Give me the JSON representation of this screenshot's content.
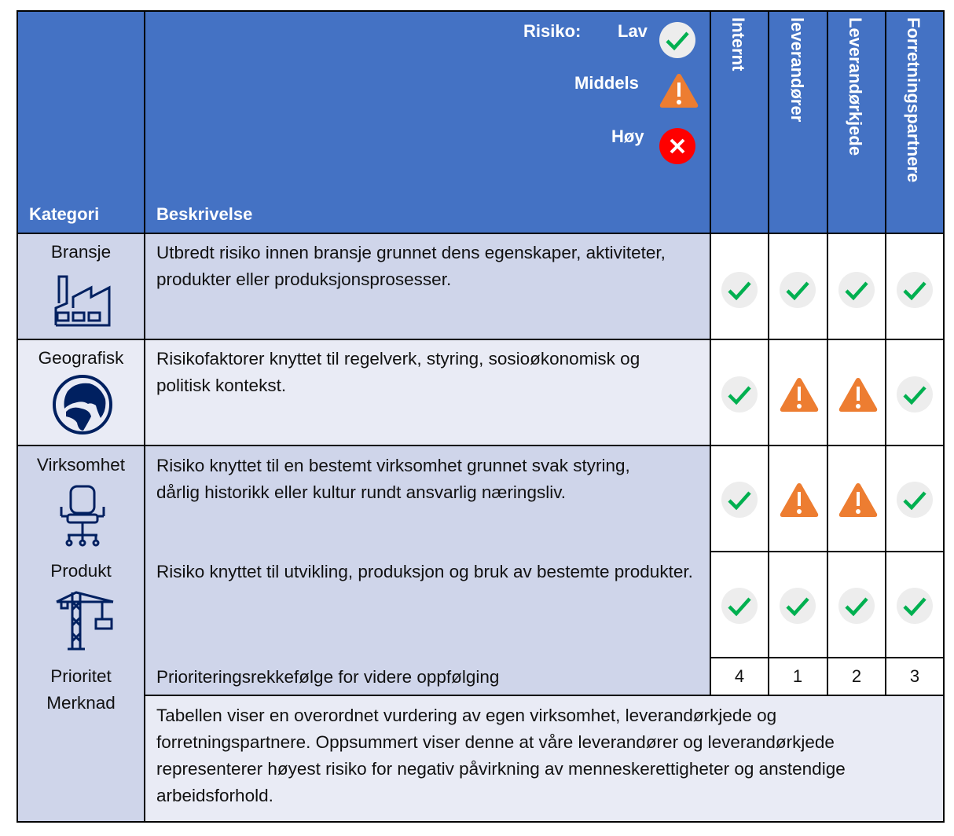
{
  "header": {
    "kategori": "Kategori",
    "beskrivelse": "Beskrivelse",
    "legend": {
      "title": "Risiko:",
      "low": "Lav",
      "medium": "Middels",
      "high": "Høy"
    },
    "columns": [
      "Internt",
      "leverandører",
      "Leverandørkjede",
      "Forretningspartnere"
    ]
  },
  "rows": [
    {
      "category": "Bransje",
      "icon": "factory-icon",
      "description": "Utbredt risiko innen bransje grunnet dens egenskaper, aktiviteter, produkter eller produksjonsprosesser.",
      "risk": [
        "low",
        "low",
        "low",
        "low"
      ]
    },
    {
      "category": "Geografisk",
      "icon": "globe-icon",
      "description": "Risikofaktorer knyttet til regelverk, styring, sosioøkonomisk og politisk kontekst.",
      "risk": [
        "low",
        "medium",
        "medium",
        "low"
      ]
    },
    {
      "category": "Virksomhet",
      "icon": "office-chair-icon",
      "description": "Risiko knyttet til en bestemt virksomhet grunnet svak styring, dårlig historikk eller kultur rundt ansvarlig næringsliv.",
      "risk": [
        "low",
        "medium",
        "medium",
        "low"
      ]
    },
    {
      "category": "Produkt",
      "icon": "crane-icon",
      "description": "Risiko knyttet til utvikling, produksjon og bruk av bestemte produkter.",
      "risk": [
        "low",
        "low",
        "low",
        "low"
      ]
    }
  ],
  "priority": {
    "label": "Prioritet",
    "description": "Prioriteringsrekkefølge for videre oppfølging",
    "values": [
      "4",
      "1",
      "2",
      "3"
    ]
  },
  "remark": {
    "label": "Merknad",
    "text": "Tabellen viser en overordnet vurdering av egen virksomhet, leverandørkjede og forretningspartnere. Oppsummert viser denne at våre leverandører og leverandørkjede representerer høyest risiko for negativ påvirkning av menneskerettigheter og anstendige arbeidsforhold."
  },
  "colors": {
    "header": "#4472C4",
    "row_dark": "#CFD5EA",
    "row_light": "#E9EBF5",
    "low": "#00B050",
    "medium": "#ED7D31",
    "high": "#FF0000",
    "icon": "#002060"
  }
}
